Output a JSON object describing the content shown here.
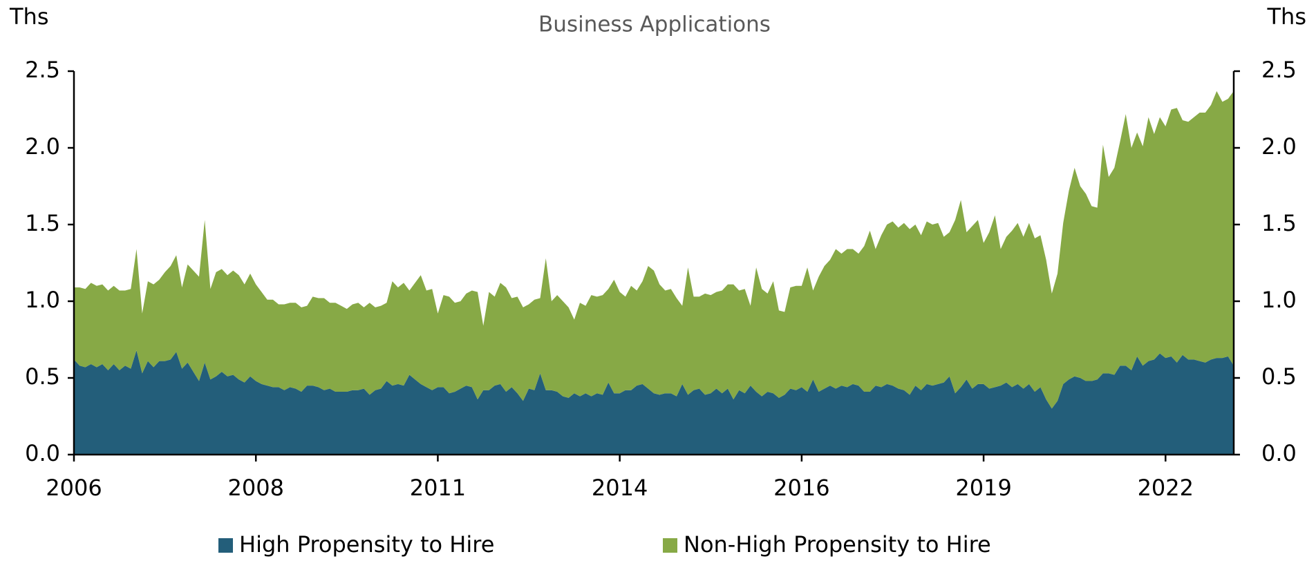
{
  "chart_data": {
    "type": "stacked_area",
    "title": "Business Applications",
    "y_label": "Ths",
    "y2_label": "Ths",
    "categories": [
      "2006",
      null,
      null,
      null,
      null,
      null,
      null,
      null,
      null,
      null,
      null,
      null,
      null,
      null,
      null,
      null,
      null,
      null,
      null,
      null,
      null,
      null,
      null,
      null,
      null,
      null,
      null,
      null,
      null,
      null,
      null,
      null,
      "2008",
      null,
      null,
      null,
      null,
      null,
      null,
      null,
      null,
      null,
      null,
      null,
      null,
      null,
      null,
      null,
      null,
      null,
      null,
      null,
      null,
      null,
      null,
      null,
      null,
      null,
      null,
      null,
      null,
      null,
      null,
      null,
      "2011",
      null,
      null,
      null,
      null,
      null,
      null,
      null,
      null,
      null,
      null,
      null,
      null,
      null,
      null,
      null,
      null,
      null,
      null,
      null,
      null,
      null,
      null,
      null,
      null,
      null,
      null,
      null,
      null,
      null,
      null,
      null,
      "2014",
      null,
      null,
      null,
      null,
      null,
      null,
      null,
      null,
      null,
      null,
      null,
      null,
      null,
      null,
      null,
      null,
      null,
      null,
      null,
      null,
      null,
      null,
      null,
      null,
      null,
      null,
      null,
      null,
      null,
      null,
      null,
      "2016",
      null,
      null,
      null,
      null,
      null,
      null,
      null,
      null,
      null,
      null,
      null,
      null,
      null,
      null,
      null,
      null,
      null,
      null,
      null,
      null,
      null,
      null,
      null,
      null,
      null,
      null,
      null,
      null,
      null,
      null,
      null,
      "2019",
      null,
      null,
      null,
      null,
      null,
      null,
      null,
      null,
      null,
      null,
      null,
      null,
      null,
      null,
      null,
      null,
      null,
      null,
      null,
      null,
      null,
      null,
      null,
      null,
      null,
      null,
      null,
      null,
      null,
      null,
      null,
      "2022",
      null,
      null,
      null,
      null,
      null,
      null,
      null,
      null,
      null,
      null,
      null,
      null
    ],
    "series": [
      {
        "name": "High Propensity to Hire",
        "color": "#235e7a",
        "values": [
          0.62,
          0.58,
          0.57,
          0.59,
          0.57,
          0.59,
          0.55,
          0.59,
          0.55,
          0.58,
          0.56,
          0.68,
          0.53,
          0.61,
          0.57,
          0.61,
          0.61,
          0.62,
          0.67,
          0.56,
          0.6,
          0.54,
          0.48,
          0.6,
          0.49,
          0.51,
          0.54,
          0.51,
          0.52,
          0.49,
          0.47,
          0.51,
          0.48,
          0.46,
          0.45,
          0.44,
          0.44,
          0.42,
          0.44,
          0.43,
          0.41,
          0.45,
          0.45,
          0.44,
          0.42,
          0.43,
          0.41,
          0.41,
          0.41,
          0.42,
          0.42,
          0.43,
          0.39,
          0.42,
          0.43,
          0.48,
          0.45,
          0.46,
          0.45,
          0.52,
          0.49,
          0.46,
          0.44,
          0.42,
          0.44,
          0.44,
          0.4,
          0.41,
          0.43,
          0.45,
          0.44,
          0.36,
          0.42,
          0.42,
          0.45,
          0.46,
          0.41,
          0.44,
          0.4,
          0.35,
          0.43,
          0.42,
          0.53,
          0.42,
          0.42,
          0.41,
          0.38,
          0.37,
          0.4,
          0.38,
          0.4,
          0.38,
          0.4,
          0.39,
          0.47,
          0.4,
          0.4,
          0.42,
          0.42,
          0.45,
          0.46,
          0.43,
          0.4,
          0.39,
          0.4,
          0.4,
          0.38,
          0.46,
          0.39,
          0.42,
          0.43,
          0.39,
          0.4,
          0.43,
          0.4,
          0.43,
          0.36,
          0.42,
          0.4,
          0.45,
          0.41,
          0.38,
          0.41,
          0.4,
          0.37,
          0.39,
          0.43,
          0.42,
          0.44,
          0.41,
          0.49,
          0.41,
          0.43,
          0.45,
          0.43,
          0.45,
          0.44,
          0.46,
          0.45,
          0.41,
          0.41,
          0.45,
          0.44,
          0.46,
          0.45,
          0.43,
          0.42,
          0.39,
          0.45,
          0.42,
          0.46,
          0.45,
          0.46,
          0.47,
          0.51,
          0.4,
          0.44,
          0.49,
          0.43,
          0.46,
          0.46,
          0.43,
          0.44,
          0.45,
          0.47,
          0.44,
          0.46,
          0.43,
          0.46,
          0.41,
          0.44,
          0.36,
          0.3,
          0.35,
          0.46,
          0.49,
          0.51,
          0.5,
          0.48,
          0.48,
          0.49,
          0.53,
          0.53,
          0.52,
          0.58,
          0.58,
          0.55,
          0.64,
          0.58,
          0.61,
          0.62,
          0.66,
          0.63,
          0.64,
          0.6,
          0.65,
          0.62,
          0.62,
          0.61,
          0.6,
          0.62,
          0.63,
          0.63,
          0.64,
          0.58
        ]
      },
      {
        "name": "Non-High Propensity to Hire",
        "color": "#87a946",
        "values": [
          0.47,
          0.51,
          0.51,
          0.53,
          0.53,
          0.52,
          0.52,
          0.51,
          0.52,
          0.49,
          0.52,
          0.66,
          0.39,
          0.52,
          0.54,
          0.53,
          0.58,
          0.61,
          0.63,
          0.53,
          0.64,
          0.66,
          0.68,
          0.93,
          0.59,
          0.68,
          0.67,
          0.66,
          0.68,
          0.68,
          0.64,
          0.67,
          0.63,
          0.6,
          0.56,
          0.57,
          0.54,
          0.56,
          0.55,
          0.56,
          0.55,
          0.52,
          0.58,
          0.58,
          0.6,
          0.56,
          0.58,
          0.56,
          0.54,
          0.56,
          0.57,
          0.53,
          0.6,
          0.54,
          0.54,
          0.51,
          0.68,
          0.63,
          0.67,
          0.55,
          0.63,
          0.71,
          0.63,
          0.66,
          0.48,
          0.6,
          0.63,
          0.58,
          0.57,
          0.6,
          0.63,
          0.7,
          0.42,
          0.64,
          0.58,
          0.66,
          0.68,
          0.58,
          0.63,
          0.61,
          0.55,
          0.59,
          0.49,
          0.86,
          0.58,
          0.63,
          0.62,
          0.59,
          0.48,
          0.61,
          0.57,
          0.66,
          0.63,
          0.65,
          0.61,
          0.74,
          0.66,
          0.61,
          0.68,
          0.62,
          0.67,
          0.8,
          0.8,
          0.72,
          0.67,
          0.68,
          0.64,
          0.51,
          0.83,
          0.61,
          0.6,
          0.66,
          0.64,
          0.63,
          0.67,
          0.68,
          0.75,
          0.65,
          0.68,
          0.52,
          0.81,
          0.7,
          0.64,
          0.73,
          0.57,
          0.54,
          0.66,
          0.68,
          0.66,
          0.81,
          0.58,
          0.75,
          0.8,
          0.82,
          0.91,
          0.86,
          0.9,
          0.88,
          0.86,
          0.95,
          1.05,
          0.89,
          0.99,
          1.04,
          1.07,
          1.05,
          1.09,
          1.08,
          1.05,
          1.01,
          1.06,
          1.05,
          1.05,
          0.95,
          0.94,
          1.13,
          1.22,
          0.96,
          1.06,
          1.07,
          0.92,
          1.02,
          1.12,
          0.89,
          0.95,
          1.02,
          1.05,
          0.99,
          1.05,
          1.0,
          0.99,
          0.91,
          0.75,
          0.83,
          1.05,
          1.23,
          1.36,
          1.25,
          1.22,
          1.14,
          1.12,
          1.49,
          1.28,
          1.35,
          1.46,
          1.64,
          1.45,
          1.46,
          1.43,
          1.59,
          1.47,
          1.54,
          1.51,
          1.61,
          1.66,
          1.53,
          1.55,
          1.58,
          1.62,
          1.63,
          1.66,
          1.74,
          1.67,
          1.68,
          1.79
        ]
      }
    ],
    "ylim": [
      0,
      2.5
    ],
    "yticks": [
      {
        "value": 0,
        "label": "0.0"
      },
      {
        "value": 0.5,
        "label": "0.5"
      },
      {
        "value": 1,
        "label": "1.0"
      },
      {
        "value": 1.5,
        "label": "1.5"
      },
      {
        "value": 2,
        "label": "2.0"
      },
      {
        "value": 2.5,
        "label": "2.5"
      }
    ],
    "y2lim": [
      0,
      2.5
    ],
    "y2ticks": [
      {
        "value": 0,
        "label": "0.0"
      },
      {
        "value": 0.5,
        "label": "0.5"
      },
      {
        "value": 1,
        "label": "1.0"
      },
      {
        "value": 1.5,
        "label": "1.5"
      },
      {
        "value": 2,
        "label": "2.0"
      },
      {
        "value": 2.5,
        "label": "2.5"
      }
    ],
    "grid": false,
    "legend": "bottom"
  }
}
